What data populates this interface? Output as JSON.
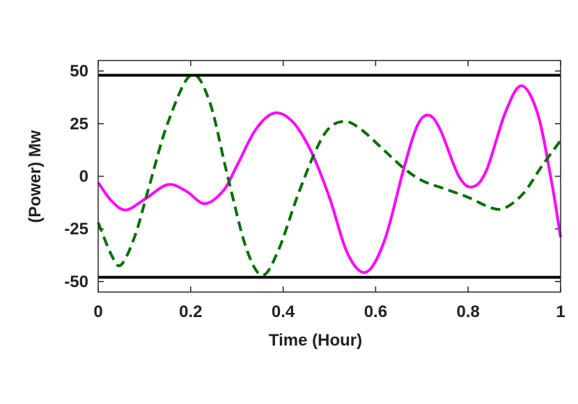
{
  "chart_data": {
    "type": "line",
    "x_label": "Time (Hour)",
    "y_label": "(Power) Mw",
    "xlim": [
      0,
      1
    ],
    "ylim": [
      -55,
      55
    ],
    "xticks": [
      0,
      0.2,
      0.4,
      0.6,
      0.8,
      1
    ],
    "yticks": [
      -50,
      -25,
      0,
      25,
      50
    ],
    "series": [
      {
        "color": "#ff00ff",
        "dash": "solid",
        "x": [
          0,
          0.03,
          0.06,
          0.1,
          0.15,
          0.19,
          0.23,
          0.27,
          0.3,
          0.34,
          0.38,
          0.42,
          0.46,
          0.5,
          0.54,
          0.58,
          0.62,
          0.66,
          0.69,
          0.715,
          0.74,
          0.78,
          0.81,
          0.84,
          0.88,
          0.915,
          0.95,
          0.98,
          1
        ],
        "values": [
          -3,
          -12,
          -16,
          -11,
          -4,
          -7,
          -13,
          -7,
          5,
          22,
          30,
          26,
          12,
          -10,
          -37,
          -45.5,
          -30,
          3,
          24,
          29,
          22,
          0,
          -5,
          3,
          30,
          43,
          30,
          -2,
          -29
        ]
      },
      {
        "color": "#007000",
        "dash": "dashed",
        "x": [
          0,
          0.03,
          0.05,
          0.08,
          0.11,
          0.15,
          0.2,
          0.24,
          0.28,
          0.32,
          0.355,
          0.39,
          0.43,
          0.47,
          0.5,
          0.535,
          0.57,
          0.62,
          0.66,
          0.7,
          0.75,
          0.8,
          0.85,
          0.88,
          0.92,
          0.96,
          1
        ],
        "values": [
          -22,
          -38,
          -42,
          -28,
          -5,
          25,
          48,
          36,
          0,
          -34,
          -47,
          -35,
          -10,
          12,
          23,
          26,
          22,
          12,
          4,
          -2,
          -6,
          -10,
          -15,
          -15,
          -8,
          5,
          17
        ]
      },
      {
        "color": "#000000",
        "dash": "solid",
        "x": [
          0,
          1
        ],
        "values": [
          48,
          48
        ]
      },
      {
        "color": "#000000",
        "dash": "solid",
        "x": [
          0,
          1
        ],
        "values": [
          -48,
          -48
        ]
      }
    ]
  }
}
